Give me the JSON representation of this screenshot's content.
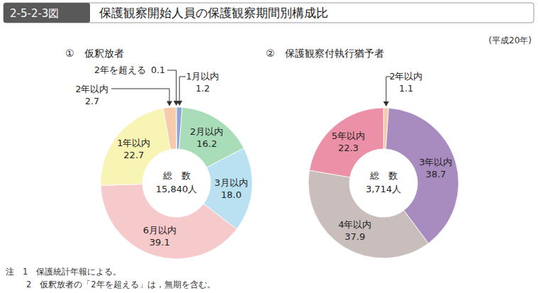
{
  "header": {
    "figure_no": "2-5-2-3図",
    "title": "保護観察開始人員の保護観察期間別構成比"
  },
  "note_year": "(平成20年)",
  "notes": [
    "注　1　保護統計年報による。",
    "2　仮釈放者の「2年を超える」は，無期を含む。"
  ],
  "chart_data": [
    {
      "type": "pie",
      "title": "①　仮釈放者",
      "categories": [
        "1月以内",
        "2月以内",
        "3月以内",
        "6月以内",
        "1年以内",
        "2年以内",
        "2年を超える"
      ],
      "values": [
        1.2,
        16.2,
        18.0,
        39.1,
        22.7,
        2.7,
        0.1
      ],
      "value_labels": [
        "1.2",
        "16.2",
        "18.0",
        "39.1",
        "22.7",
        "2.7",
        "0.1"
      ],
      "colors": [
        "#8da6d6",
        "#a9dcb9",
        "#b9e1f2",
        "#f6c9cb",
        "#f8f4b4",
        "#f6cbab",
        "#27386e"
      ],
      "data_labels": true,
      "total_title": "総　数",
      "total": {
        "value": 15840,
        "label": "15,840人"
      }
    },
    {
      "type": "pie",
      "title": "②　保護観察付執行猶予者",
      "categories": [
        "2年以内",
        "3年以内",
        "4年以内",
        "5年以内"
      ],
      "values": [
        1.1,
        38.7,
        37.9,
        22.3
      ],
      "value_labels": [
        "1.1",
        "38.7",
        "37.9",
        "22.3"
      ],
      "colors": [
        "#f6cbab",
        "#a88cbf",
        "#c9bebb",
        "#ec90a7"
      ],
      "data_labels": true,
      "total_title": "総　数",
      "total": {
        "value": 3714,
        "label": "3,714人"
      }
    }
  ]
}
